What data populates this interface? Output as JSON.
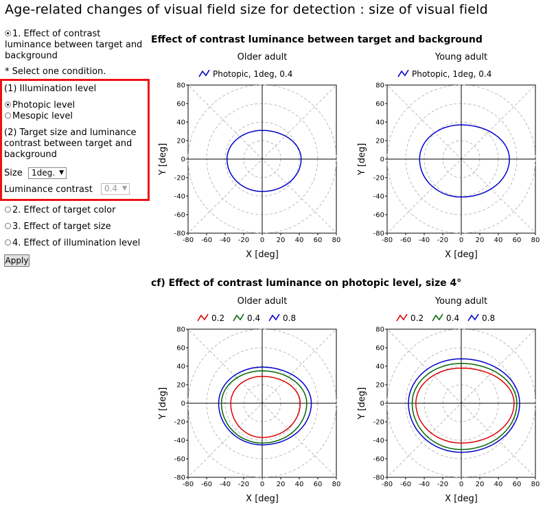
{
  "page_title": "Age-related changes of visual field size for detection : size of visual field",
  "controls": {
    "option1": "1. Effect of contrast luminance between target and background",
    "option1_line1": "1. Effect of contrast",
    "option1_line2": "luminance between target and",
    "option1_line3": "background",
    "note": "* Select one condition.",
    "illumination_heading": "(1) Illumination level",
    "photopic_label": "Photopic level",
    "mesopic_label": "Mesopic level",
    "target_heading_line1": "(2) Target size and luminance",
    "target_heading_line2": "contrast between target and",
    "target_heading_line3": "background",
    "size_label": "Size",
    "size_value": "1deg.",
    "contrast_label": "Luminance contrast",
    "contrast_value": "0.4",
    "option2": "2. Effect of target color",
    "option3": "3. Effect of target size",
    "option4": "4. Effect of illumination level",
    "apply_label": "Apply",
    "accent_color": "#ee1111"
  },
  "section1_title": "Effect of contrast luminance between target and background",
  "section2_title": "cf) Effect of contrast luminance on photopic level, size 4°",
  "chart_data": [
    {
      "type": "line",
      "title": "Older adult",
      "xlabel": "X [deg]",
      "ylabel": "Y [deg]",
      "xlim": [
        -80,
        80
      ],
      "ylim": [
        -80,
        80
      ],
      "ticks": [
        -80,
        -60,
        -40,
        -20,
        0,
        20,
        40,
        60,
        80
      ],
      "grid": "polar",
      "legend": "top",
      "series": [
        {
          "name": "Photopic, 1deg, 0.4",
          "color": "#0000cc",
          "extent": {
            "left": -38,
            "right": 42,
            "top": 31,
            "bottom": -35
          }
        }
      ]
    },
    {
      "type": "line",
      "title": "Young adult",
      "xlabel": "X [deg]",
      "ylabel": "Y [deg]",
      "xlim": [
        -80,
        80
      ],
      "ylim": [
        -80,
        80
      ],
      "ticks": [
        -80,
        -60,
        -40,
        -20,
        0,
        20,
        40,
        60,
        80
      ],
      "grid": "polar",
      "legend": "top",
      "series": [
        {
          "name": "Photopic, 1deg, 0.4",
          "color": "#0000cc",
          "extent": {
            "left": -45,
            "right": 52,
            "top": 37,
            "bottom": -41
          }
        }
      ]
    },
    {
      "type": "line",
      "title": "Older adult",
      "xlabel": "X [deg]",
      "ylabel": "Y [deg]",
      "xlim": [
        -80,
        80
      ],
      "ylim": [
        -80,
        80
      ],
      "ticks": [
        -80,
        -60,
        -40,
        -20,
        0,
        20,
        40,
        60,
        80
      ],
      "grid": "polar",
      "legend": "top",
      "series": [
        {
          "name": "0.2",
          "color": "#dd0000",
          "extent": {
            "left": -34,
            "right": 41,
            "top": 29,
            "bottom": -37
          }
        },
        {
          "name": "0.4",
          "color": "#006600",
          "extent": {
            "left": -44,
            "right": 48,
            "top": 35,
            "bottom": -43
          }
        },
        {
          "name": "0.8",
          "color": "#0000cc",
          "extent": {
            "left": -47,
            "right": 53,
            "top": 39,
            "bottom": -45
          }
        }
      ]
    },
    {
      "type": "line",
      "title": "Young adult",
      "xlabel": "X [deg]",
      "ylabel": "Y [deg]",
      "xlim": [
        -80,
        80
      ],
      "ylim": [
        -80,
        80
      ],
      "ticks": [
        -80,
        -60,
        -40,
        -20,
        0,
        20,
        40,
        60,
        80
      ],
      "grid": "polar",
      "legend": "top",
      "series": [
        {
          "name": "0.2",
          "color": "#dd0000",
          "extent": {
            "left": -49,
            "right": 57,
            "top": 38,
            "bottom": -43
          }
        },
        {
          "name": "0.4",
          "color": "#006600",
          "extent": {
            "left": -53,
            "right": 60,
            "top": 43,
            "bottom": -50
          }
        },
        {
          "name": "0.8",
          "color": "#0000cc",
          "extent": {
            "left": -57,
            "right": 63,
            "top": 48,
            "bottom": -53
          }
        }
      ]
    }
  ]
}
